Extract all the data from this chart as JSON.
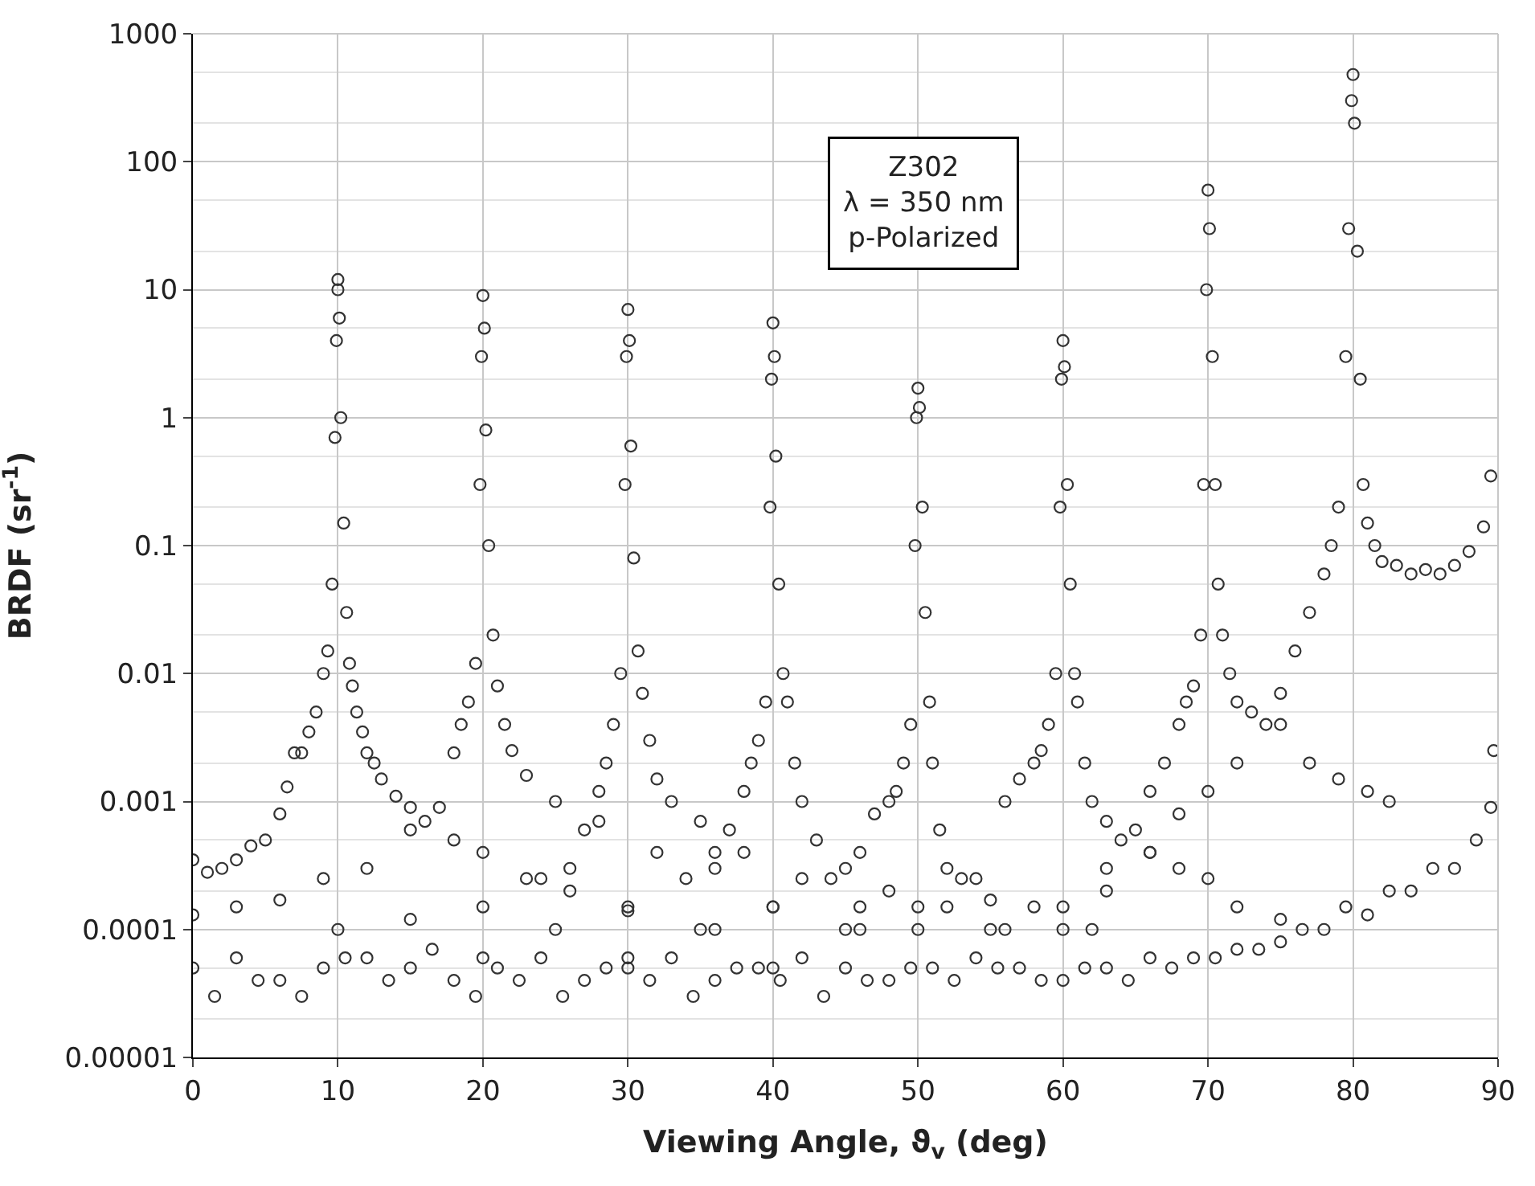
{
  "chart_data": {
    "type": "scatter",
    "xlabel": "Viewing Angle, ϑ$_{v}$ (deg)",
    "ylabel": "BRDF (sr$^{-1}$)",
    "annotations": [
      "Z302\nλ = 350 nm\np-Polarized"
    ],
    "log": "y",
    "grid": true,
    "marker": "circle",
    "xlim": [
      0,
      90
    ],
    "xticks": [
      0,
      10,
      20,
      30,
      40,
      50,
      60,
      70,
      80,
      90
    ],
    "ylim": [
      1e-05,
      1000
    ],
    "yticks": [
      {
        "value": 1e-05,
        "label": "0.00001"
      },
      {
        "value": 0.0001,
        "label": "0.0001"
      },
      {
        "value": 0.001,
        "label": "0.001"
      },
      {
        "value": 0.01,
        "label": "0.01"
      },
      {
        "value": 0.1,
        "label": "0.1"
      },
      {
        "value": 1,
        "label": "1"
      },
      {
        "value": 10,
        "label": "10"
      },
      {
        "value": 100,
        "label": "100"
      },
      {
        "value": 1000,
        "label": "1000"
      }
    ],
    "series": [
      {
        "color": "#333333",
        "x": [
          0,
          1,
          2,
          3,
          4,
          5,
          6,
          6.5,
          7,
          7.5,
          8,
          8.5,
          9,
          9.3,
          9.6,
          9.8,
          9.9,
          10,
          10,
          10.1,
          10.2,
          10.4,
          10.6,
          10.8,
          11,
          11.3,
          11.7,
          12,
          12.5,
          13,
          14,
          15,
          16,
          18,
          20,
          23,
          26,
          30,
          35
        ],
        "values": [
          0.00035,
          0.00028,
          0.0003,
          0.00035,
          0.00045,
          0.0005,
          0.0008,
          0.0013,
          0.0024,
          0.0024,
          0.0035,
          0.005,
          0.01,
          0.015,
          0.05,
          0.7,
          4,
          10,
          12,
          6,
          1,
          0.15,
          0.03,
          0.012,
          0.008,
          0.005,
          0.0035,
          0.0024,
          0.002,
          0.0015,
          0.0011,
          0.0009,
          0.0007,
          0.0005,
          0.0004,
          0.00025,
          0.0002,
          0.00014,
          0.0001
        ]
      },
      {
        "color": "#333333",
        "x": [
          0,
          3,
          6,
          9,
          12,
          15,
          17,
          18,
          18.5,
          19,
          19.5,
          19.8,
          19.9,
          20,
          20.1,
          20.2,
          20.4,
          20.7,
          21,
          21.5,
          22,
          23,
          25,
          28,
          32,
          36,
          40,
          45
        ],
        "values": [
          0.00013,
          0.00015,
          0.00017,
          0.00025,
          0.0003,
          0.0006,
          0.0009,
          0.0024,
          0.004,
          0.006,
          0.012,
          0.3,
          3,
          9,
          5,
          0.8,
          0.1,
          0.02,
          0.008,
          0.004,
          0.0025,
          0.0016,
          0.001,
          0.0007,
          0.0004,
          0.0003,
          0.00015,
          0.0001
        ]
      },
      {
        "color": "#333333",
        "x": [
          10,
          15,
          20,
          24,
          26,
          27,
          28,
          28.5,
          29,
          29.5,
          29.8,
          29.9,
          30,
          30.1,
          30.2,
          30.4,
          30.7,
          31,
          31.5,
          32,
          33,
          35,
          38,
          42,
          46,
          50
        ],
        "values": [
          0.0001,
          0.00012,
          0.00015,
          0.00025,
          0.0003,
          0.0006,
          0.0012,
          0.002,
          0.004,
          0.01,
          0.3,
          3,
          7,
          4,
          0.6,
          0.08,
          0.015,
          0.007,
          0.003,
          0.0015,
          0.001,
          0.0007,
          0.0004,
          0.00025,
          0.00015,
          0.0001
        ]
      },
      {
        "color": "#333333",
        "x": [
          20,
          25,
          30,
          34,
          36,
          37,
          38,
          38.5,
          39,
          39.5,
          39.8,
          39.9,
          40,
          40.1,
          40.2,
          40.4,
          40.7,
          41,
          41.5,
          42,
          43,
          45,
          48,
          52,
          56
        ],
        "values": [
          6e-05,
          0.0001,
          0.00015,
          0.00025,
          0.0004,
          0.0006,
          0.0012,
          0.002,
          0.003,
          0.006,
          0.2,
          2,
          5.5,
          3,
          0.5,
          0.05,
          0.01,
          0.006,
          0.002,
          0.001,
          0.0005,
          0.0003,
          0.0002,
          0.00015,
          0.0001
        ]
      },
      {
        "color": "#333333",
        "x": [
          30,
          36,
          40,
          44,
          46,
          47,
          48,
          48.5,
          49,
          49.5,
          49.8,
          49.9,
          50,
          50.1,
          50.3,
          50.5,
          50.8,
          51,
          51.5,
          52,
          53,
          55,
          58,
          62
        ],
        "values": [
          6e-05,
          0.0001,
          0.00015,
          0.00025,
          0.0004,
          0.0008,
          0.001,
          0.0012,
          0.002,
          0.004,
          0.1,
          1,
          1.7,
          1.2,
          0.2,
          0.03,
          0.006,
          0.002,
          0.0006,
          0.0003,
          0.00025,
          0.00017,
          0.00015,
          0.0001
        ]
      },
      {
        "color": "#333333",
        "x": [
          40,
          46,
          50,
          54,
          56,
          57,
          58,
          58.5,
          59,
          59.5,
          59.8,
          59.9,
          60,
          60.1,
          60.3,
          60.5,
          60.8,
          61,
          61.5,
          62,
          63,
          64,
          66,
          68,
          70,
          72,
          75
        ],
        "values": [
          5e-05,
          0.0001,
          0.00015,
          0.00025,
          0.001,
          0.0015,
          0.002,
          0.0025,
          0.004,
          0.01,
          0.2,
          2,
          4,
          2.5,
          0.3,
          0.05,
          0.01,
          0.006,
          0.002,
          0.001,
          0.0007,
          0.0005,
          0.0004,
          0.0003,
          0.00025,
          0.00015,
          0.00012
        ]
      },
      {
        "color": "#333333",
        "x": [
          55,
          60,
          63,
          65,
          66,
          67,
          68,
          68.5,
          69,
          69.5,
          69.7,
          69.9,
          70,
          70.1,
          70.3,
          70.5,
          70.7,
          71,
          71.5,
          72,
          73,
          75,
          77,
          79,
          81,
          82.5
        ],
        "values": [
          0.0001,
          0.00015,
          0.0003,
          0.0006,
          0.0012,
          0.002,
          0.004,
          0.006,
          0.008,
          0.02,
          0.3,
          10,
          60,
          30,
          3,
          0.3,
          0.05,
          0.02,
          0.01,
          0.006,
          0.005,
          0.004,
          0.002,
          0.0015,
          0.0012,
          0.001
        ]
      },
      {
        "color": "#333333",
        "x": [
          60,
          63,
          66,
          68,
          70,
          72,
          74,
          75,
          76,
          77,
          78,
          78.5,
          79,
          79.5,
          79.7,
          79.9,
          80,
          80.1,
          80.3,
          80.5,
          80.7,
          81,
          81.5,
          82,
          83,
          84,
          85,
          86,
          87,
          88,
          89,
          89.5
        ],
        "values": [
          0.0001,
          0.0002,
          0.0004,
          0.0008,
          0.0012,
          0.002,
          0.004,
          0.007,
          0.015,
          0.03,
          0.06,
          0.1,
          0.2,
          3,
          30,
          300,
          480,
          200,
          20,
          2,
          0.3,
          0.15,
          0.1,
          0.075,
          0.07,
          0.06,
          0.065,
          0.06,
          0.07,
          0.09,
          0.14,
          0.35
        ]
      },
      {
        "color": "#333333",
        "x": [
          0,
          3,
          6,
          9,
          12,
          15,
          18,
          21,
          24,
          27,
          30,
          33,
          36,
          39,
          42,
          45,
          48,
          51,
          54,
          57,
          60,
          63,
          66,
          69,
          72,
          75,
          78,
          81,
          84,
          87,
          89.5
        ],
        "values": [
          5e-05,
          6e-05,
          4e-05,
          5e-05,
          6e-05,
          5e-05,
          4e-05,
          5e-05,
          6e-05,
          4e-05,
          5e-05,
          6e-05,
          4e-05,
          5e-05,
          6e-05,
          5e-05,
          4e-05,
          5e-05,
          6e-05,
          5e-05,
          4e-05,
          5e-05,
          6e-05,
          6e-05,
          7e-05,
          8e-05,
          0.0001,
          0.00013,
          0.0002,
          0.0003,
          0.0009
        ]
      },
      {
        "color": "#333333",
        "x": [
          1.5,
          4.5,
          7.5,
          10.5,
          13.5,
          16.5,
          19.5,
          22.5,
          25.5,
          28.5,
          31.5,
          34.5,
          37.5,
          40.5,
          43.5,
          46.5,
          49.5,
          52.5,
          55.5,
          58.5,
          61.5,
          64.5,
          67.5,
          70.5,
          73.5,
          76.5,
          79.5,
          82.5,
          85.5,
          88.5,
          89.7
        ],
        "values": [
          3e-05,
          4e-05,
          3e-05,
          6e-05,
          4e-05,
          7e-05,
          3e-05,
          4e-05,
          3e-05,
          5e-05,
          4e-05,
          3e-05,
          5e-05,
          4e-05,
          3e-05,
          4e-05,
          5e-05,
          4e-05,
          5e-05,
          4e-05,
          5e-05,
          4e-05,
          5e-05,
          6e-05,
          7e-05,
          0.0001,
          0.00015,
          0.0002,
          0.0003,
          0.0005,
          0.0025
        ]
      }
    ]
  }
}
